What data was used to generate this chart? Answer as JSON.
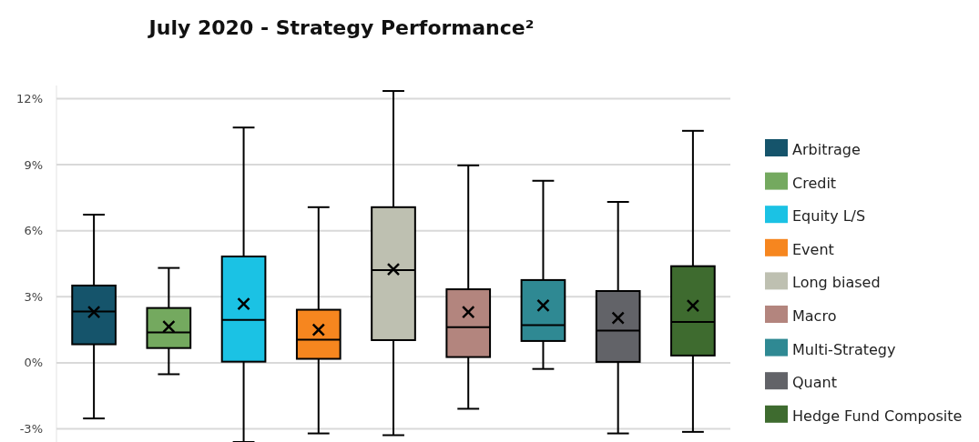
{
  "chart_data": {
    "type": "box",
    "title": "July 2020 - Strategy Performance²",
    "categories": [
      null
    ],
    "series": [
      {
        "name": "Arbitrage",
        "color": "#15546b",
        "boxes": [
          {
            "low": -2.53,
            "q1": 0.84,
            "median": 2.33,
            "q3": 3.51,
            "high": 6.73,
            "mean": 2.3
          }
        ]
      },
      {
        "name": "Credit",
        "color": "#74a95f",
        "boxes": [
          {
            "low": -0.52,
            "q1": 0.67,
            "median": 1.38,
            "q3": 2.49,
            "high": 4.31,
            "mean": 1.64
          }
        ]
      },
      {
        "name": "Equity L/S",
        "color": "#1bc2e4",
        "boxes": [
          {
            "low": -3.6,
            "q1": 0.05,
            "median": 1.95,
            "q3": 4.83,
            "high": 10.69,
            "mean": 2.68
          }
        ]
      },
      {
        "name": "Event",
        "color": "#f6861f",
        "boxes": [
          {
            "low": -3.21,
            "q1": 0.18,
            "median": 1.05,
            "q3": 2.41,
            "high": 7.07,
            "mean": 1.5
          }
        ]
      },
      {
        "name": "Long biased",
        "color": "#bec0b1",
        "boxes": [
          {
            "low": -3.29,
            "q1": 1.03,
            "median": 4.21,
            "q3": 7.07,
            "high": 12.35,
            "mean": 4.25
          }
        ]
      },
      {
        "name": "Macro",
        "color": "#b3857e",
        "boxes": [
          {
            "low": -2.09,
            "q1": 0.26,
            "median": 1.62,
            "q3": 3.34,
            "high": 8.97,
            "mean": 2.3
          }
        ]
      },
      {
        "name": "Multi-Strategy",
        "color": "#2f8993",
        "boxes": [
          {
            "low": -0.28,
            "q1": 0.99,
            "median": 1.71,
            "q3": 3.76,
            "high": 8.27,
            "mean": 2.6
          }
        ]
      },
      {
        "name": "Quant",
        "color": "#626368",
        "boxes": [
          {
            "low": -3.21,
            "q1": 0.04,
            "median": 1.46,
            "q3": 3.26,
            "high": 7.31,
            "mean": 2.04
          }
        ]
      },
      {
        "name": "Hedge Fund Composite",
        "color": "#3e6b2f",
        "boxes": [
          {
            "low": -3.14,
            "q1": 0.33,
            "median": 1.86,
            "q3": 4.39,
            "high": 10.54,
            "mean": 2.59
          }
        ]
      }
    ],
    "ylim": [
      -3.6,
      12.6
    ],
    "yticks": [
      {
        "value": -3,
        "label": "-3%"
      },
      {
        "value": 0,
        "label": "0%"
      },
      {
        "value": 3,
        "label": "3%"
      },
      {
        "value": 6,
        "label": "6%"
      },
      {
        "value": 9,
        "label": "9%"
      },
      {
        "value": 12,
        "label": "12%"
      }
    ],
    "grid": "y",
    "legend": "right",
    "tick_labels": "y"
  }
}
